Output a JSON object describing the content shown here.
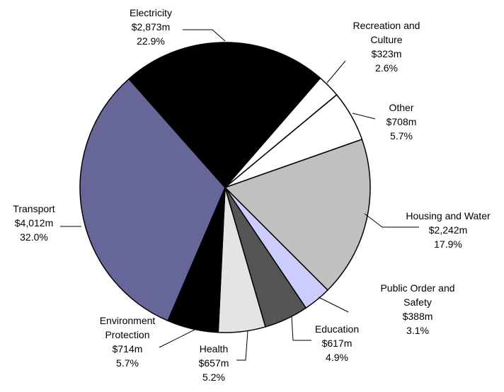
{
  "chart_data": {
    "type": "pie",
    "categories": [
      "Recreation and Culture",
      "Other",
      "Housing and Water",
      "Public Order and Safety",
      "Education",
      "Health",
      "Environment Protection",
      "Transport",
      "Electricity"
    ],
    "values": [
      323,
      708,
      2242,
      388,
      617,
      657,
      714,
      4012,
      2873
    ],
    "value_labels": [
      "$323m",
      "$708m",
      "$2,242m",
      "$388m",
      "$617m",
      "$657m",
      "$714m",
      "$4,012m",
      "$2,873m"
    ],
    "percent_labels": [
      "2.6%",
      "5.7%",
      "17.9%",
      "3.1%",
      "4.9%",
      "5.2%",
      "5.7%",
      "32.0%",
      "22.9%"
    ],
    "colors": [
      "#ffffff",
      "#ffffff",
      "#c0c0c0",
      "#ccccff",
      "#555555",
      "#e4e4e4",
      "#000000",
      "#666699",
      "#000000"
    ]
  }
}
